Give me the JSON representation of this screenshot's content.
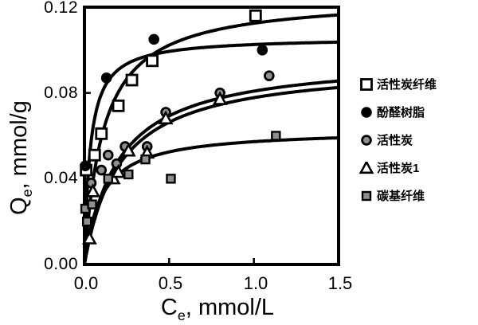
{
  "figure": {
    "background": "#ffffff",
    "ink_color": "#000000",
    "gray_fill": "#8f8f8f"
  },
  "axes": {
    "x": {
      "symbol": "C",
      "sub": "e",
      "unit": ", mmol/L",
      "ticks": [
        "0.0",
        "0.5",
        "1.0",
        "1.5"
      ]
    },
    "y": {
      "symbol": "Q",
      "sub": "e",
      "unit": ", mmol/g",
      "ticks": [
        "0.00",
        "0.04",
        "0.08",
        "0.12"
      ]
    }
  },
  "chart_data": {
    "type": "scatter",
    "title": "",
    "xlabel": "Ce, mmol/L",
    "ylabel": "Qe, mmol/g",
    "xlim": [
      0,
      1.5
    ],
    "ylim": [
      0,
      0.12
    ],
    "x_ticks": [
      0,
      0.5,
      1.0,
      1.5
    ],
    "y_ticks": [
      0,
      0.04,
      0.08,
      0.12
    ],
    "grid": false,
    "legend_position": "right-outside",
    "curve_model_note": "solid black fitted curves, Langmuir form q = qm*k*c/(1+k*c)",
    "series": [
      {
        "id": "activated-carbon-fiber",
        "name": "活性炭纤维",
        "marker": "square-open",
        "marker_color": "#ffffff",
        "edge_color": "#000000",
        "points": [
          [
            0.01,
            0.044
          ],
          [
            0.06,
            0.051
          ],
          [
            0.1,
            0.061
          ],
          [
            0.2,
            0.074
          ],
          [
            0.28,
            0.086
          ],
          [
            0.4,
            0.095
          ],
          [
            1.01,
            0.116
          ]
        ],
        "fit": {
          "model": "langmuir",
          "qm": 0.125,
          "k": 9
        }
      },
      {
        "id": "phenolic-resin",
        "name": "酚醛树脂",
        "marker": "circle-filled",
        "marker_color": "#000000",
        "edge_color": "#000000",
        "points": [
          [
            0.005,
            0.046
          ],
          [
            0.13,
            0.087
          ],
          [
            0.41,
            0.105
          ],
          [
            1.05,
            0.1
          ]
        ],
        "fit": {
          "model": "langmuir",
          "qm": 0.106,
          "k": 30
        }
      },
      {
        "id": "activated-carbon",
        "name": "活性炭",
        "marker": "circle-gray",
        "marker_color": "#8f8f8f",
        "edge_color": "#000000",
        "points": [
          [
            0.04,
            0.038
          ],
          [
            0.1,
            0.044
          ],
          [
            0.14,
            0.051
          ],
          [
            0.19,
            0.047
          ],
          [
            0.24,
            0.055
          ],
          [
            0.37,
            0.055
          ],
          [
            0.48,
            0.071
          ],
          [
            0.8,
            0.08
          ],
          [
            1.09,
            0.088
          ]
        ],
        "fit": {
          "model": "langmuir",
          "qm": 0.097,
          "k": 5
        }
      },
      {
        "id": "activated-carbon-1",
        "name": "活性炭1",
        "marker": "triangle-open",
        "marker_color": "#ffffff",
        "edge_color": "#000000",
        "points": [
          [
            0.03,
            0.012
          ],
          [
            0.05,
            0.034
          ],
          [
            0.17,
            0.04
          ],
          [
            0.2,
            0.043
          ],
          [
            0.26,
            0.053
          ],
          [
            0.37,
            0.052
          ],
          [
            0.48,
            0.068
          ],
          [
            0.8,
            0.077
          ]
        ],
        "fit": {
          "model": "langmuir",
          "qm": 0.094,
          "k": 4.8
        }
      },
      {
        "id": "carbon-based-fiber",
        "name": "碳基纤维",
        "marker": "square-gray",
        "marker_color": "#8f8f8f",
        "edge_color": "#000000",
        "points": [
          [
            0.005,
            0.026
          ],
          [
            0.015,
            0.02
          ],
          [
            0.045,
            0.028
          ],
          [
            0.14,
            0.04
          ],
          [
            0.26,
            0.042
          ],
          [
            0.36,
            0.049
          ],
          [
            0.51,
            0.04
          ],
          [
            1.13,
            0.06
          ]
        ],
        "fit": {
          "model": "langmuir",
          "qm": 0.063,
          "k": 10
        }
      }
    ]
  }
}
